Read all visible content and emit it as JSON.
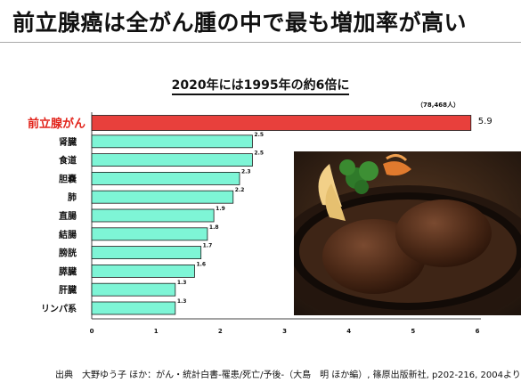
{
  "slide": {
    "title": "前立腺癌は全がん腫の中で最も増加率が高い",
    "footer": "出典　大野ゆう子 ほか：がん・統計白書-罹患/死亡/予後-（大島　明 ほか編）, 篠原出版新社, p202-216, 2004より"
  },
  "photo": {
    "description": "hamburg-steak-on-iron-plate"
  },
  "chart_data": {
    "type": "bar",
    "orientation": "horizontal",
    "title": "2020年には1995年の約6倍に",
    "categories": [
      "前立腺がん",
      "肾臓",
      "食道",
      "胆嚢",
      "肺",
      "直腸",
      "結腸",
      "膀胱",
      "膵臓",
      "肝臓",
      "リンパ系"
    ],
    "values": [
      5.9,
      2.5,
      2.5,
      2.3,
      2.2,
      1.9,
      1.8,
      1.7,
      1.6,
      1.3,
      1.3
    ],
    "value_labels": [
      "5.9",
      "2.5",
      "2.5",
      "2.3",
      "2.2",
      "1.9",
      "1.8",
      "1.7",
      "1.6",
      "1.3",
      "1.3"
    ],
    "annotation": "（78,468人）",
    "highlight_index": 0,
    "xlim": [
      0,
      6
    ],
    "xticks": [
      "0",
      "1",
      "2",
      "3",
      "4",
      "5",
      "6"
    ],
    "colors": {
      "highlight": "#e8403c",
      "bar": "#7ef5d6",
      "highlight_label": "#e2231a"
    },
    "grid": false,
    "legend": "none"
  }
}
